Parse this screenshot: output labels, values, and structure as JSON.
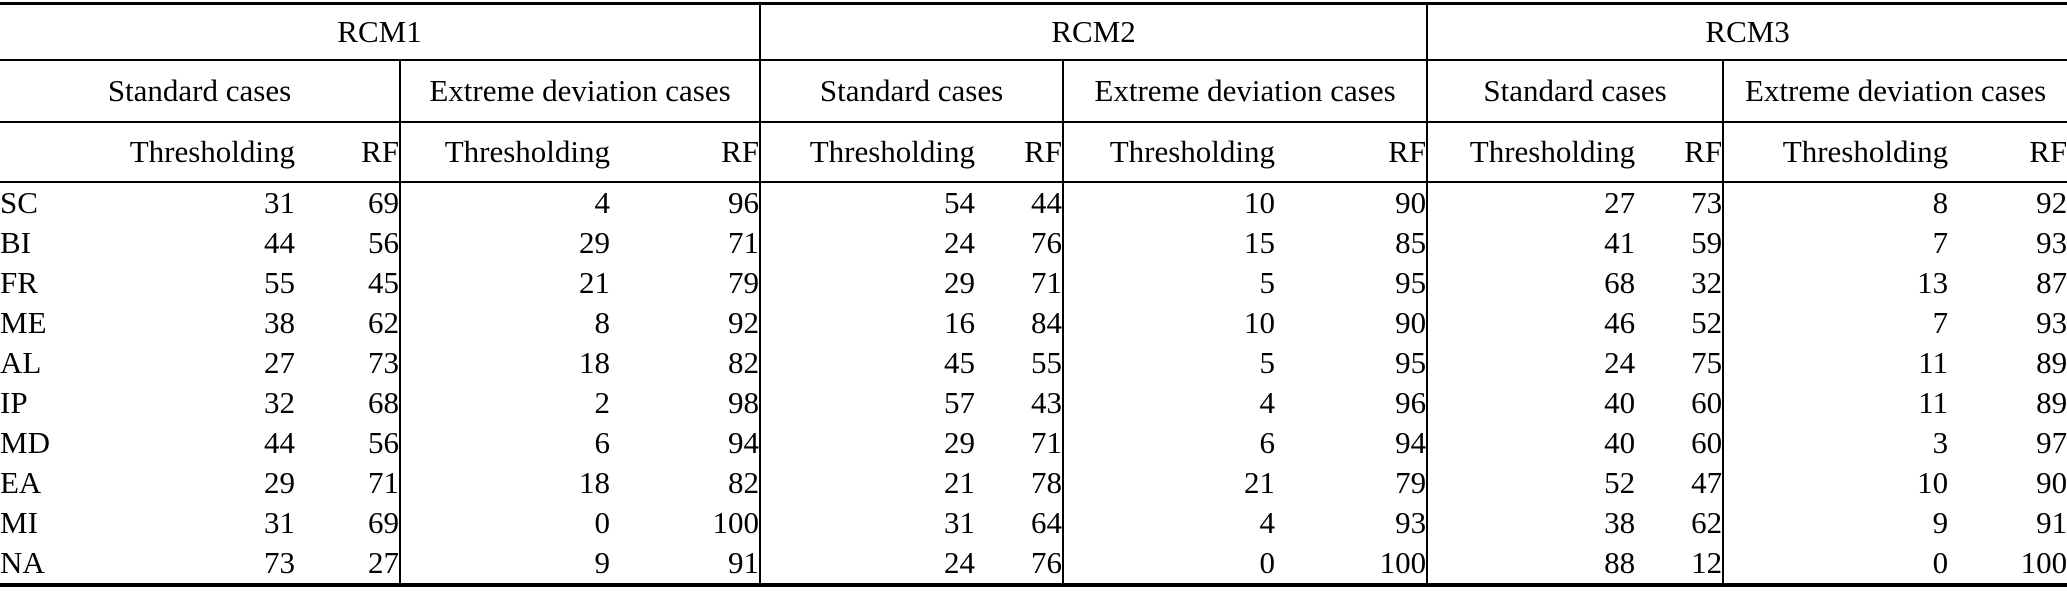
{
  "table": {
    "group_headers": [
      "RCM1",
      "RCM2",
      "RCM3"
    ],
    "case_headers": {
      "standard": "Standard cases",
      "extreme": "Extreme deviation cases"
    },
    "method_headers": {
      "thresholding": "Thresholding",
      "rf": "RF"
    },
    "rows": [
      {
        "label": "SC",
        "values": [
          31,
          69,
          4,
          96,
          54,
          44,
          10,
          90,
          27,
          73,
          8,
          92
        ]
      },
      {
        "label": "BI",
        "values": [
          44,
          56,
          29,
          71,
          24,
          76,
          15,
          85,
          41,
          59,
          7,
          93
        ]
      },
      {
        "label": "FR",
        "values": [
          55,
          45,
          21,
          79,
          29,
          71,
          5,
          95,
          68,
          32,
          13,
          87
        ]
      },
      {
        "label": "ME",
        "values": [
          38,
          62,
          8,
          92,
          16,
          84,
          10,
          90,
          46,
          52,
          7,
          93
        ]
      },
      {
        "label": "AL",
        "values": [
          27,
          73,
          18,
          82,
          45,
          55,
          5,
          95,
          24,
          75,
          11,
          89
        ]
      },
      {
        "label": "IP",
        "values": [
          32,
          68,
          2,
          98,
          57,
          43,
          4,
          96,
          40,
          60,
          11,
          89
        ]
      },
      {
        "label": "MD",
        "values": [
          44,
          56,
          6,
          94,
          29,
          71,
          6,
          94,
          40,
          60,
          3,
          97
        ]
      },
      {
        "label": "EA",
        "values": [
          29,
          71,
          18,
          82,
          21,
          78,
          21,
          79,
          52,
          47,
          10,
          90
        ]
      },
      {
        "label": "MI",
        "values": [
          31,
          69,
          0,
          100,
          31,
          64,
          4,
          93,
          38,
          62,
          9,
          91
        ]
      },
      {
        "label": "NA",
        "values": [
          73,
          27,
          9,
          91,
          24,
          76,
          0,
          100,
          88,
          12,
          0,
          100
        ]
      }
    ]
  }
}
